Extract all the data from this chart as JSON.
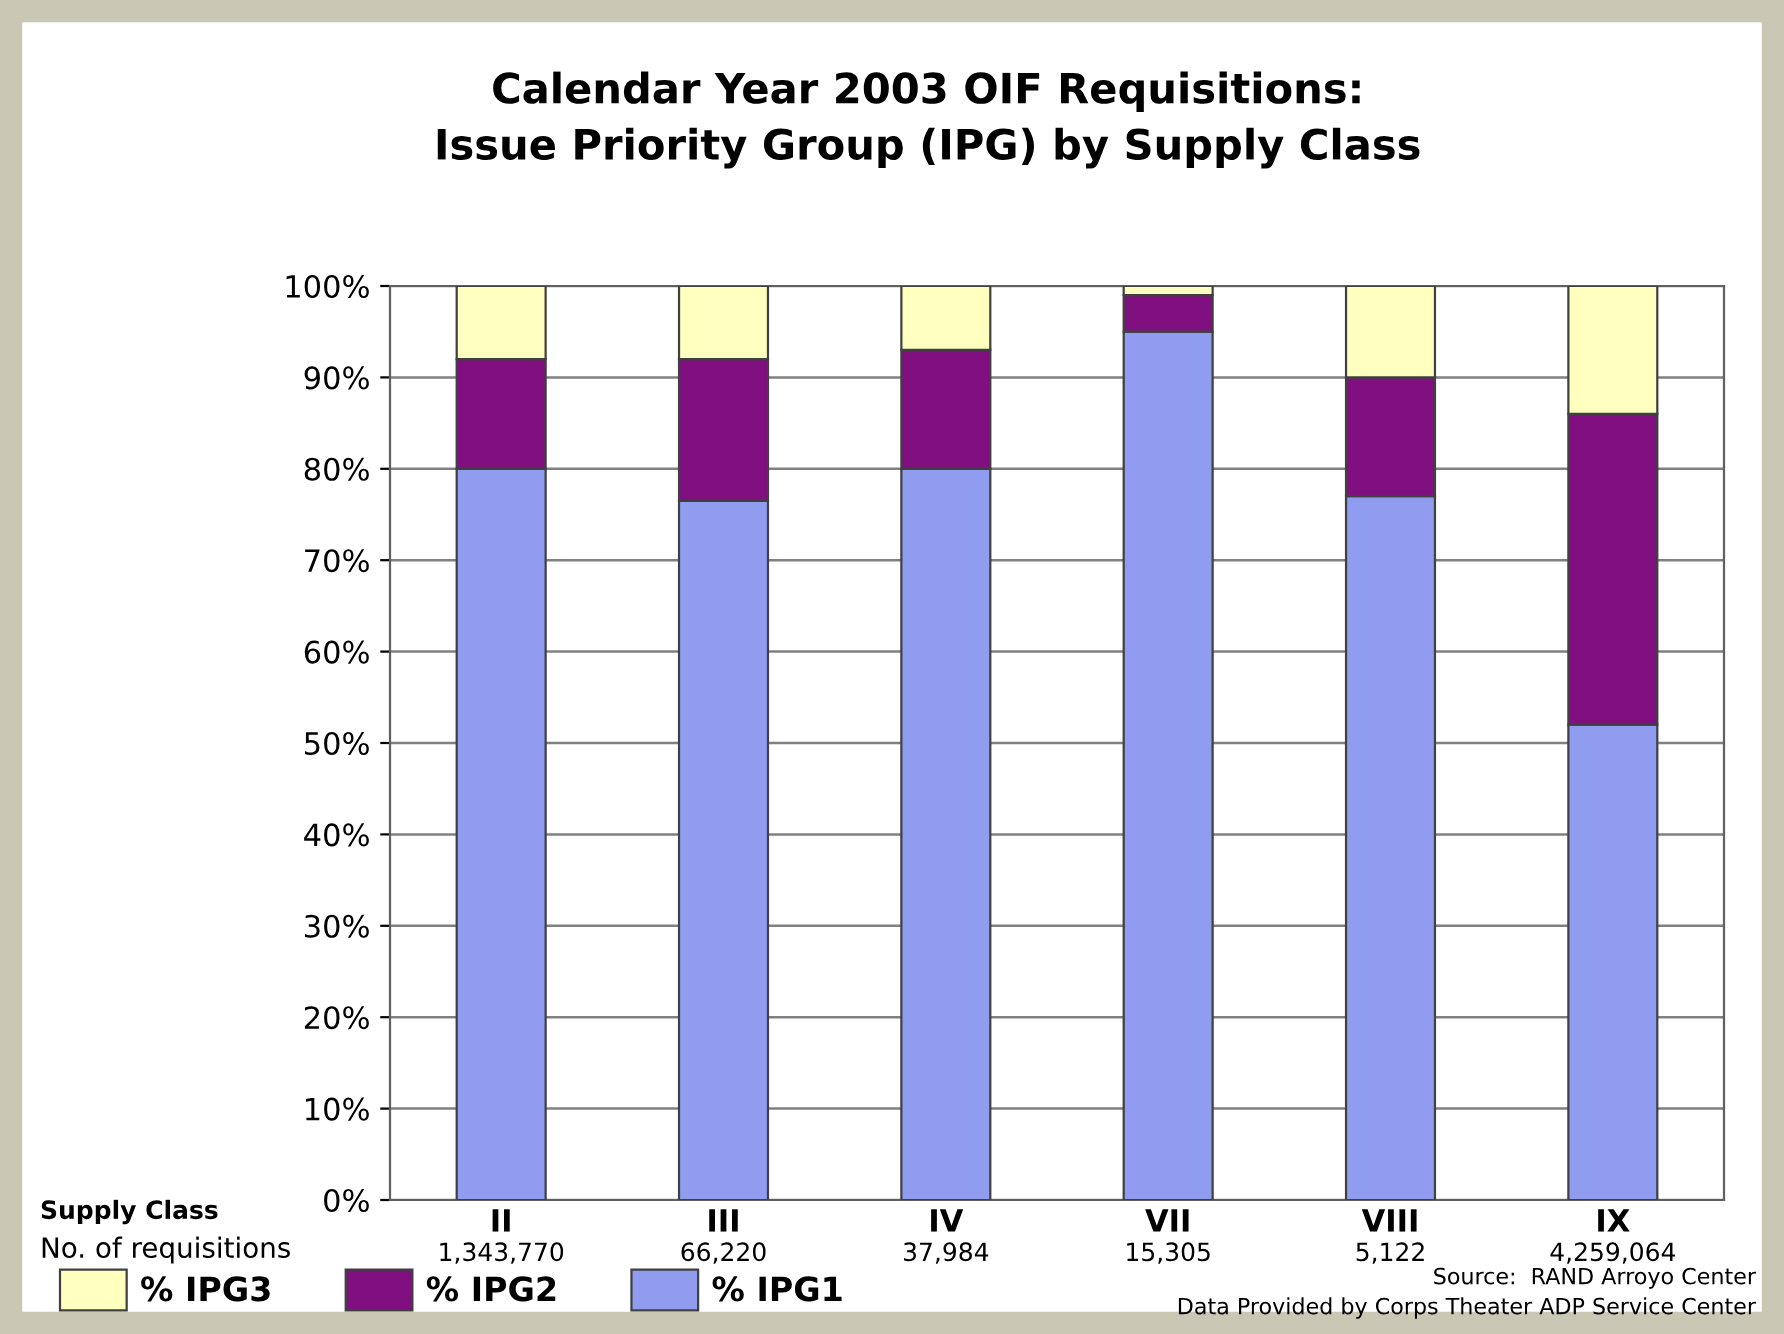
{
  "chart_data": {
    "type": "bar",
    "stacked": true,
    "title": "Calendar Year 2003 OIF Requisitions:\nIssue Priority Group (IPG) by Supply Class",
    "categories": [
      "II",
      "III",
      "IV",
      "VII",
      "VIII",
      "IX"
    ],
    "series": [
      {
        "name": "% IPG1",
        "color": "#8f9cf0",
        "values": [
          80,
          76.5,
          80,
          95,
          77,
          52
        ]
      },
      {
        "name": "% IPG2",
        "color": "#800f80",
        "values": [
          12,
          15.5,
          13,
          4,
          13,
          34
        ]
      },
      {
        "name": "% IPG3",
        "color": "#ffffc0",
        "values": [
          8,
          8,
          7,
          1,
          10,
          14
        ]
      }
    ],
    "ylim": [
      0,
      100
    ],
    "yticks": [
      {
        "value": 0,
        "label": "0%"
      },
      {
        "value": 10,
        "label": "10%"
      },
      {
        "value": 20,
        "label": "20%"
      },
      {
        "value": 30,
        "label": "30%"
      },
      {
        "value": 40,
        "label": "40%"
      },
      {
        "value": 50,
        "label": "50%"
      },
      {
        "value": 60,
        "label": "60%"
      },
      {
        "value": 70,
        "label": "70%"
      },
      {
        "value": 80,
        "label": "80%"
      },
      {
        "value": 90,
        "label": "90%"
      },
      {
        "value": 100,
        "label": "100%"
      }
    ],
    "grid": "y",
    "legend": "bottom left",
    "annotations": [
      "Supply Class",
      "No. of requisitions",
      "1,343,770",
      "66,220",
      "37,984",
      "15,305",
      "5,122",
      "4,259,064",
      "Source:  RAND Arroyo Center",
      "Data Provided by Corps Theater ADP Service Center"
    ]
  }
}
